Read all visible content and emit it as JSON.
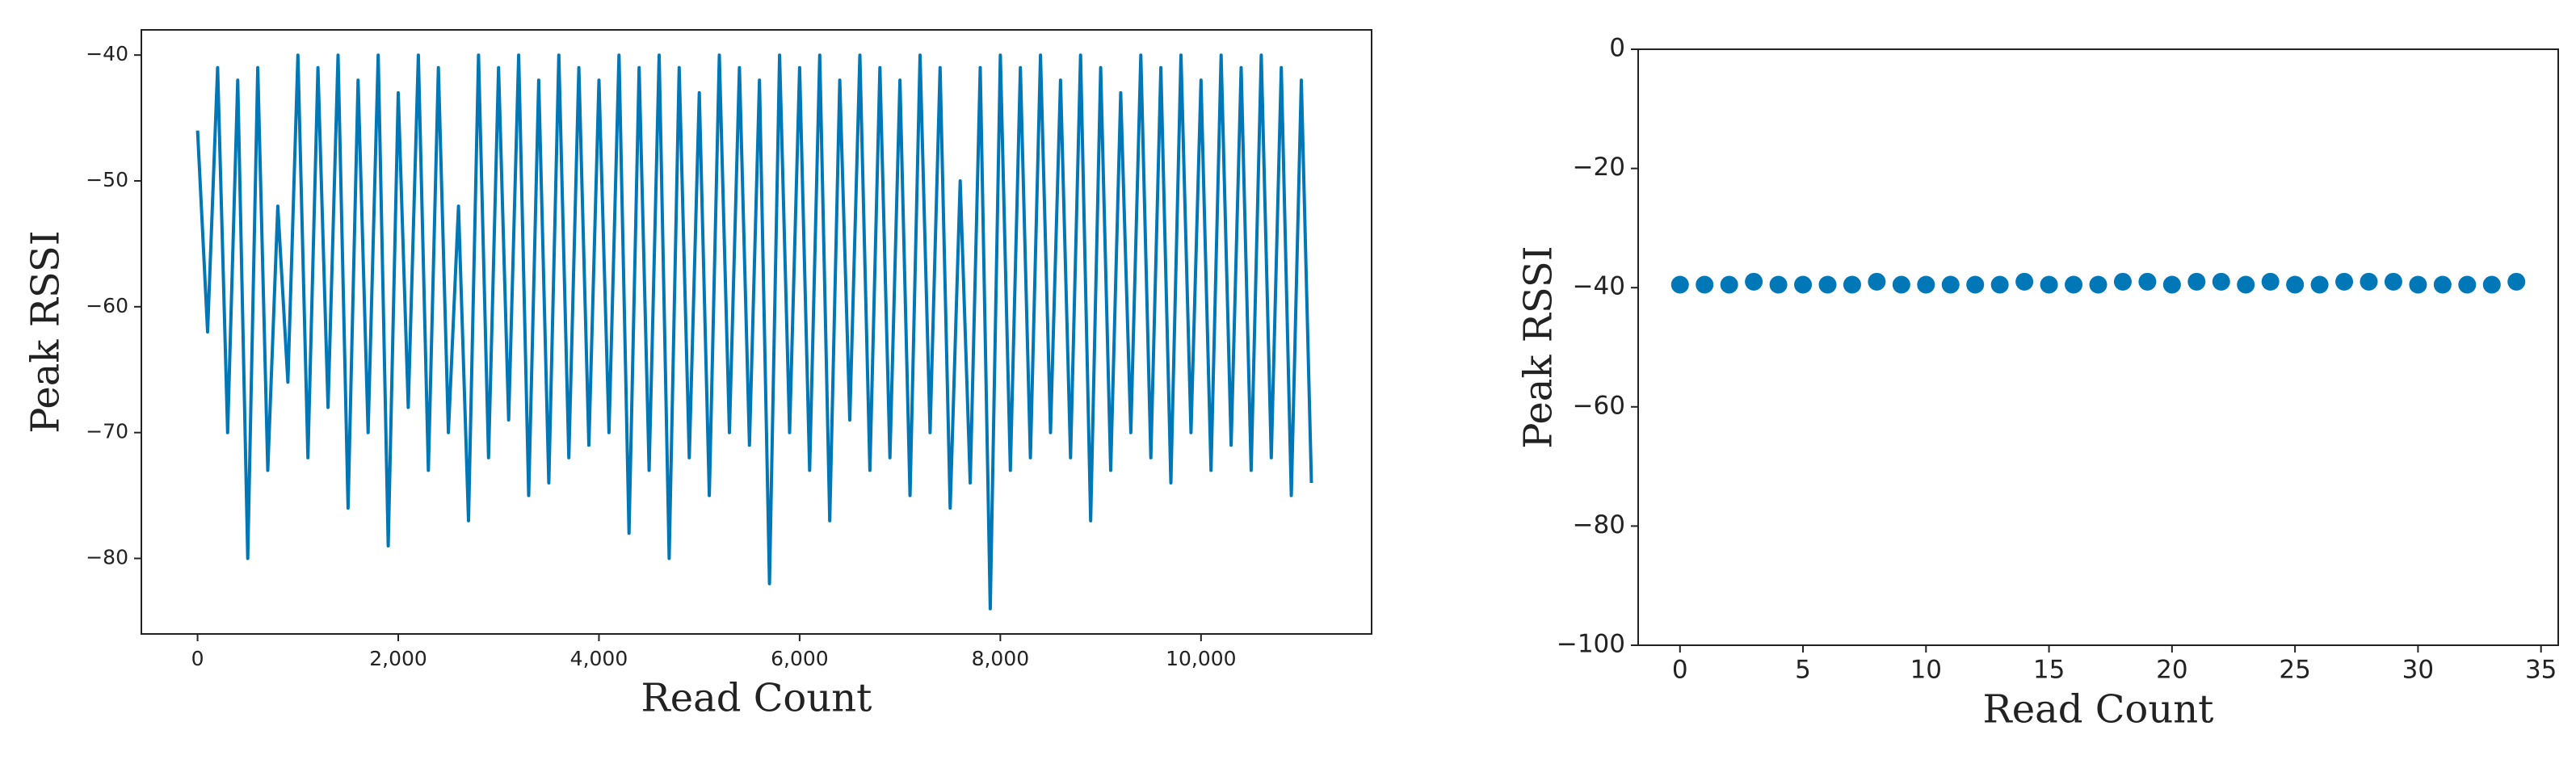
{
  "chart_data": [
    {
      "type": "line",
      "x_label": "Read Count",
      "y_label": "Peak RSSI",
      "color": "#0077b6",
      "x": [
        0,
        100,
        200,
        300,
        400,
        500,
        600,
        700,
        800,
        900,
        1000,
        1100,
        1200,
        1300,
        1400,
        1500,
        1600,
        1700,
        1800,
        1900,
        2000,
        2100,
        2200,
        2300,
        2400,
        2500,
        2600,
        2700,
        2800,
        2900,
        3000,
        3100,
        3200,
        3300,
        3400,
        3500,
        3600,
        3700,
        3800,
        3900,
        4000,
        4100,
        4200,
        4300,
        4400,
        4500,
        4600,
        4700,
        4800,
        4900,
        5000,
        5100,
        5200,
        5300,
        5400,
        5500,
        5600,
        5700,
        5800,
        5900,
        6000,
        6100,
        6200,
        6300,
        6400,
        6500,
        6600,
        6700,
        6800,
        6900,
        7000,
        7100,
        7200,
        7300,
        7400,
        7500,
        7600,
        7700,
        7800,
        7900,
        8000,
        8100,
        8200,
        8300,
        8400,
        8500,
        8600,
        8700,
        8800,
        8900,
        9000,
        9100,
        9200,
        9300,
        9400,
        9500,
        9600,
        9700,
        9800,
        9900,
        10000,
        10100,
        10200,
        10300,
        10400,
        10500,
        10600,
        10700,
        10800,
        10900,
        11000,
        11100
      ],
      "values": [
        -46,
        -62,
        -41,
        -70,
        -42,
        -80,
        -41,
        -73,
        -52,
        -66,
        -40,
        -72,
        -41,
        -68,
        -40,
        -76,
        -42,
        -70,
        -40,
        -79,
        -43,
        -68,
        -40,
        -73,
        -41,
        -70,
        -52,
        -77,
        -40,
        -72,
        -41,
        -69,
        -40,
        -75,
        -42,
        -74,
        -40,
        -72,
        -41,
        -71,
        -42,
        -70,
        -40,
        -78,
        -41,
        -73,
        -40,
        -80,
        -41,
        -72,
        -43,
        -75,
        -40,
        -70,
        -41,
        -71,
        -42,
        -82,
        -40,
        -70,
        -41,
        -73,
        -40,
        -77,
        -42,
        -69,
        -40,
        -73,
        -41,
        -72,
        -42,
        -75,
        -40,
        -70,
        -41,
        -76,
        -50,
        -74,
        -41,
        -84,
        -40,
        -73,
        -41,
        -72,
        -40,
        -70,
        -42,
        -72,
        -40,
        -77,
        -41,
        -73,
        -43,
        -70,
        -40,
        -72,
        -41,
        -74,
        -40,
        -70,
        -42,
        -73,
        -40,
        -71,
        -41,
        -73,
        -40,
        -72,
        -41,
        -75,
        -42,
        -74
      ],
      "xlim": [
        -560,
        11700
      ],
      "ylim": [
        -86,
        -38
      ],
      "xticks": [
        0,
        {
          "value": 2000,
          "label": "2,000"
        },
        {
          "value": 4000,
          "label": "4,000"
        },
        {
          "value": 6000,
          "label": "6,000"
        },
        {
          "value": 8000,
          "label": "8,000"
        },
        {
          "value": 10000,
          "label": "10,000"
        }
      ],
      "yticks": [
        {
          "value": -80,
          "label": "−80"
        },
        {
          "value": -70,
          "label": "−70"
        },
        {
          "value": -60,
          "label": "−60"
        },
        {
          "value": -50,
          "label": "−50"
        },
        {
          "value": -40,
          "label": "−40"
        }
      ]
    },
    {
      "type": "scatter",
      "x_label": "Read Count",
      "y_label": "Peak RSSI",
      "color": "#0077b6",
      "x": [
        0,
        1,
        2,
        3,
        4,
        5,
        6,
        7,
        8,
        9,
        10,
        11,
        12,
        13,
        14,
        15,
        16,
        17,
        18,
        19,
        20,
        21,
        22,
        23,
        24,
        25,
        26,
        27,
        28,
        29,
        30,
        31,
        32,
        33,
        34
      ],
      "values": [
        -39.5,
        -39.5,
        -39.5,
        -39,
        -39.5,
        -39.5,
        -39.5,
        -39.5,
        -39,
        -39.5,
        -39.5,
        -39.5,
        -39.5,
        -39.5,
        -39,
        -39.5,
        -39.5,
        -39.5,
        -39,
        -39,
        -39.5,
        -39,
        -39,
        -39.5,
        -39,
        -39.5,
        -39.5,
        -39,
        -39,
        -39,
        -39.5,
        -39.5,
        -39.5,
        -39.5,
        -39
      ],
      "xlim": [
        -1.7,
        35.7
      ],
      "ylim": [
        -100,
        0
      ],
      "xticks": [
        0,
        5,
        10,
        15,
        20,
        25,
        30,
        35
      ],
      "yticks": [
        {
          "value": -100,
          "label": "−100"
        },
        {
          "value": -80,
          "label": "−80"
        },
        {
          "value": -60,
          "label": "−60"
        },
        {
          "value": -40,
          "label": "−40"
        },
        {
          "value": -20,
          "label": "−20"
        },
        0
      ]
    }
  ]
}
